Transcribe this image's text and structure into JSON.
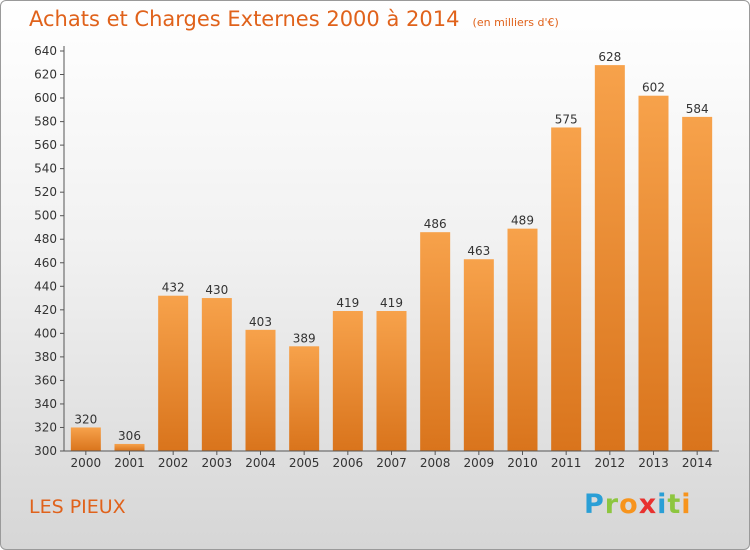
{
  "header": {
    "title": "Achats et Charges Externes 2000 à 2014",
    "unit": "(en milliers d'€)"
  },
  "footer": {
    "city": "LES PIEUX"
  },
  "brand": {
    "letters": [
      "P",
      "r",
      "o",
      "x",
      "i",
      "t",
      "i"
    ],
    "colors": [
      "#2a9fd6",
      "#8dc63f",
      "#f7941d",
      "#e8312f",
      "#2a9fd6",
      "#8dc63f",
      "#f7941d"
    ]
  },
  "colors": {
    "bar_light": "#f7a24b",
    "bar_dark": "#d9741c",
    "text_accent": "#e0621b"
  },
  "chart_data": {
    "type": "bar",
    "title": "Achats et Charges Externes 2000 à 2014",
    "subtitle": "(en milliers d'€)",
    "xlabel": "",
    "ylabel": "",
    "categories": [
      "2000",
      "2001",
      "2002",
      "2003",
      "2004",
      "2005",
      "2006",
      "2007",
      "2008",
      "2009",
      "2010",
      "2011",
      "2012",
      "2013",
      "2014"
    ],
    "values": [
      320,
      306,
      432,
      430,
      403,
      389,
      419,
      419,
      486,
      463,
      489,
      575,
      628,
      602,
      584
    ],
    "ylim": [
      300,
      640
    ],
    "yticks": [
      300,
      320,
      340,
      360,
      380,
      400,
      420,
      440,
      460,
      480,
      500,
      520,
      540,
      560,
      580,
      600,
      620,
      640
    ],
    "grid": false,
    "legend": "none"
  }
}
